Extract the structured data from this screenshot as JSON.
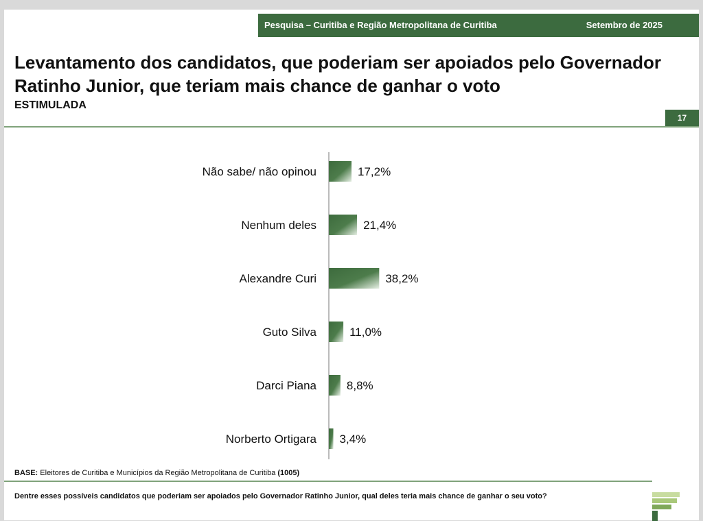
{
  "header": {
    "survey_label": "Pesquisa – Curitiba e Região Metropolitana de Curitiba",
    "date_label": "Setembro de 2025"
  },
  "slide": {
    "title": "Levantamento dos candidatos, que poderiam ser apoiados pelo Governador Ratinho Junior, que teriam mais chance de ganhar o voto",
    "subtitle": "ESTIMULADA",
    "page_number": "17"
  },
  "footer": {
    "base_label": "BASE:",
    "base_text": " Eleitores de Curitiba e Municípios da Região Metropolitana de Curitiba ",
    "base_count": "(1005)",
    "question": "Dentre esses possíveis candidatos que poderiam ser apoiados pelo Governador Ratinho Junior, qual deles teria mais chance de ganhar o seu voto?"
  },
  "colors": {
    "brand_green": "#3c6b3f",
    "bar_dark": "#3d6b3d",
    "bar_light": "#e6efe4"
  },
  "chart_data": {
    "type": "bar",
    "orientation": "horizontal",
    "categories": [
      "Não sabe/ não opinou",
      "Nenhum deles",
      "Alexandre Curi",
      "Guto Silva",
      "Darci Piana",
      "Norberto Ortigara"
    ],
    "values": [
      17.2,
      21.4,
      38.2,
      11.0,
      8.8,
      3.4
    ],
    "value_labels": [
      "17,2%",
      "21,4%",
      "38,2%",
      "11,0%",
      "8,8%",
      "3,4%"
    ],
    "unit": "%",
    "xlim": [
      0,
      100
    ],
    "grid": false,
    "legend": "none"
  }
}
